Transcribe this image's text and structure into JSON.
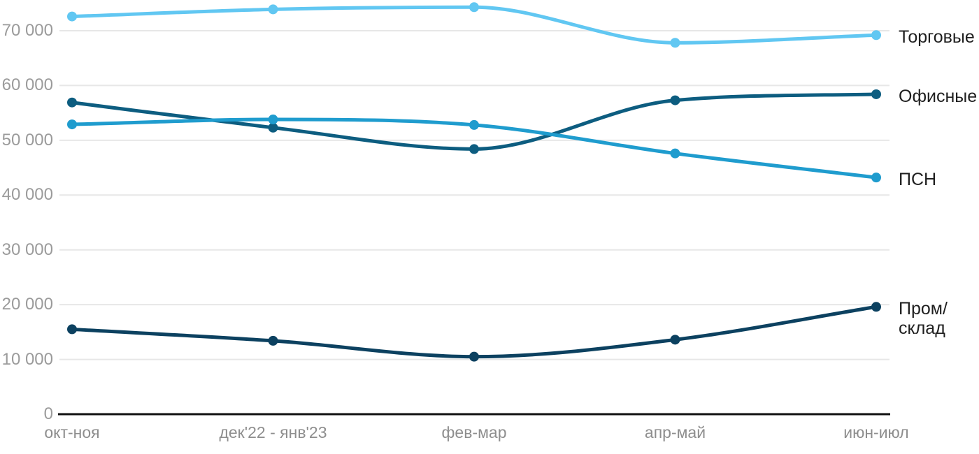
{
  "chart_data": {
    "type": "line",
    "title": "",
    "xlabel": "",
    "ylabel": "",
    "categories": [
      "окт-ноя",
      "дек'22 - янв'23",
      "фев-мар",
      "апр-май",
      "июн-июл"
    ],
    "series": [
      {
        "name": "Торговые",
        "color": "#61c7f2",
        "values": [
          72600,
          73900,
          74300,
          67800,
          69200
        ]
      },
      {
        "name": "Офисные",
        "color": "#0d5d80",
        "values": [
          56900,
          52300,
          48400,
          57300,
          58400
        ]
      },
      {
        "name": "ПСН",
        "color": "#1f9cce",
        "values": [
          52900,
          53800,
          52800,
          47600,
          43200
        ]
      },
      {
        "name": "Пром/склад",
        "color": "#0c4160",
        "label_lines": [
          "Пром/",
          "склад"
        ],
        "values": [
          15500,
          13400,
          10500,
          13600,
          19600
        ]
      }
    ],
    "yticks": [
      0,
      10000,
      20000,
      30000,
      40000,
      50000,
      60000,
      70000
    ],
    "ytick_labels": [
      "0",
      "10 000",
      "20 000",
      "30 000",
      "40 000",
      "50 000",
      "60 000",
      "70 000"
    ],
    "ylim": [
      0,
      75600
    ],
    "grid": "horizontal",
    "legend_position": "right-of-line-ends",
    "marker": "dot",
    "colors": {
      "gridline": "#e7e7e7",
      "axis_line": "#111111",
      "y_tick_text": "#9b9b9b",
      "x_tick_text": "#8e8e8e",
      "series_label_text": "#1f1f1f",
      "background": "#ffffff"
    }
  }
}
